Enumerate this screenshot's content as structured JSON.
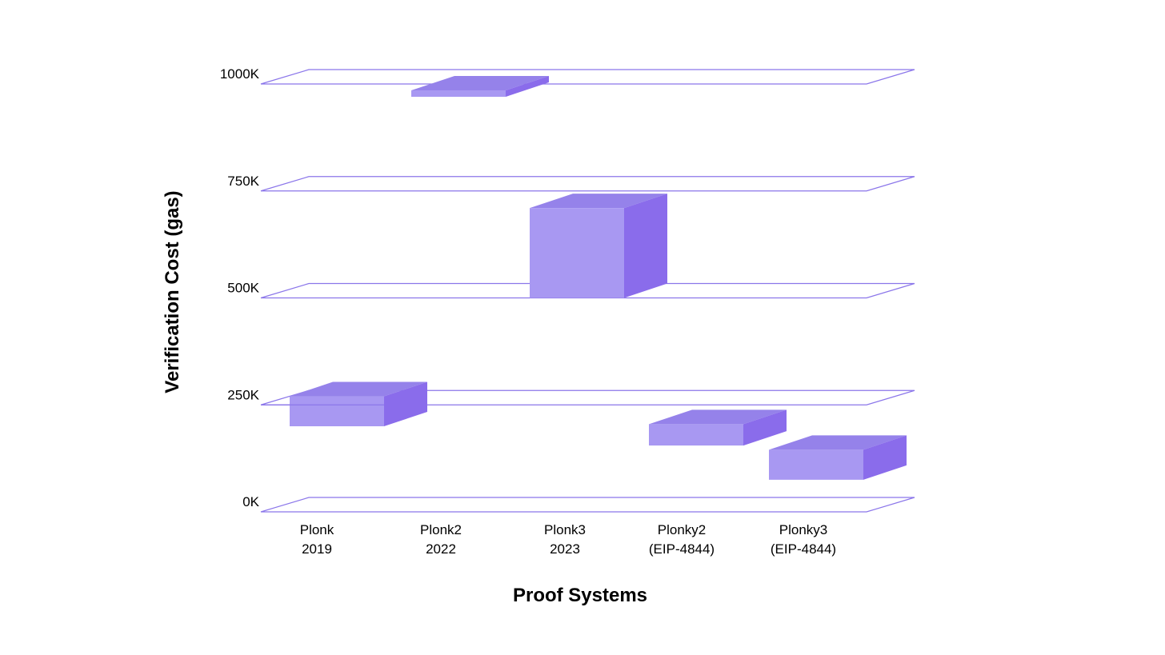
{
  "chart_data": {
    "type": "bar",
    "style": "3d",
    "categories": [
      [
        "Plonk",
        "2019"
      ],
      [
        "Plonk2",
        "2022"
      ],
      [
        "Plonk3",
        "2023"
      ],
      [
        "Plonky2",
        "(EIP-4844)"
      ],
      [
        "Plonky3",
        "(EIP-4844)"
      ]
    ],
    "bars": [
      {
        "low": 200,
        "high": 270
      },
      {
        "low": 970,
        "high": 985
      },
      {
        "low": 500,
        "high": 710
      },
      {
        "low": 155,
        "high": 205
      },
      {
        "low": 75,
        "high": 145
      }
    ],
    "xlabel": "Proof Systems",
    "ylabel": "Verification Cost (gas)",
    "yticks": [
      0,
      250,
      500,
      750,
      1000
    ],
    "ytick_labels": [
      "0K",
      "250K",
      "500K",
      "750K",
      "1000K"
    ],
    "ylim": [
      0,
      1000
    ],
    "grid": true,
    "legend": "none",
    "colors": {
      "bar_front": "#a898f2",
      "bar_top": "#9582ea",
      "bar_side": "#8a6ceb",
      "grid_plane": "#8b76ea",
      "text": "#000000"
    }
  }
}
